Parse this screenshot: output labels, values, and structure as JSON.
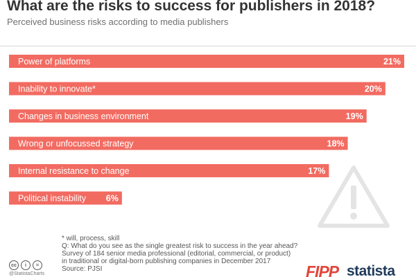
{
  "header": {
    "title": "What are the risks to success for publishers in 2018?",
    "subtitle": "Perceived business risks according to media publishers"
  },
  "chart_data": {
    "type": "bar",
    "orientation": "horizontal",
    "title": "What are the risks to success for publishers in 2018?",
    "subtitle": "Perceived business risks according to media publishers",
    "categories": [
      "Power of platforms",
      "Inability to innovate*",
      "Changes in business environment",
      "Wrong or unfocussed strategy",
      "Internal resistance to change",
      "Political instability"
    ],
    "values": [
      21,
      20,
      19,
      18,
      17,
      6
    ],
    "value_labels": [
      "21%",
      "20%",
      "19%",
      "18%",
      "17%",
      "6%"
    ],
    "unit": "%",
    "xlim": [
      0,
      21
    ],
    "grid": false,
    "legend": "none",
    "bar_color": "#f26b61"
  },
  "notes": {
    "footnote": "* will, process, skill",
    "question": "Q: What do you see as the single greatest risk to success in the year ahead?",
    "survey_line1": "Survey of 184 senior media professional (editorial, commercial, or product)",
    "survey_line2": "in traditional or digital-born publishing companies in December 2017",
    "source": "Source: PJSI"
  },
  "footer": {
    "license_icons": [
      "cc",
      "i",
      "="
    ],
    "handle": "@StatistaCharts",
    "partner_logo": "FIPP",
    "brand_logo": "statista"
  },
  "icons": {
    "warning": "warning-triangle-icon"
  }
}
